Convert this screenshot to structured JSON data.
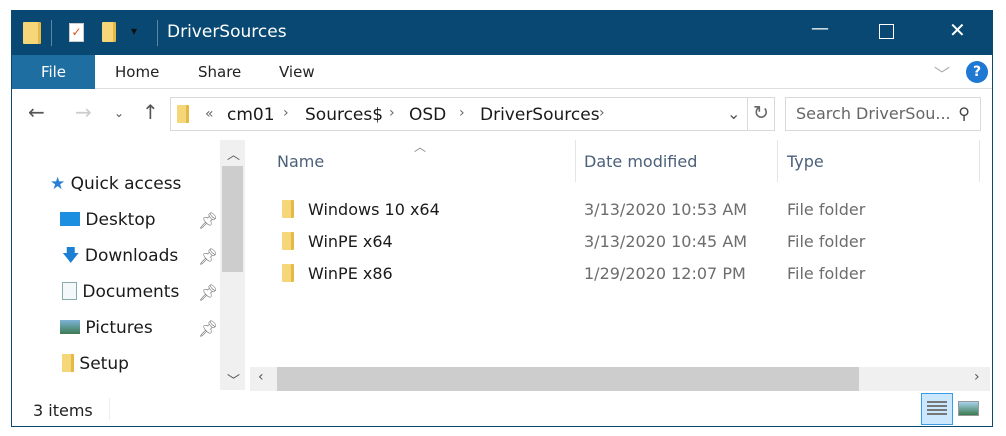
{
  "window": {
    "title": "DriverSources",
    "accent": "#084872",
    "file_tab_color": "#1f6ea1"
  },
  "quick_access_toolbar": {
    "icons": [
      "folder-icon",
      "properties-icon",
      "new-folder-icon",
      "customize-dropdown-icon"
    ]
  },
  "window_controls": {
    "minimize": "—",
    "maximize": "☐",
    "close": "✕"
  },
  "ribbon": {
    "tabs": [
      "File",
      "Home",
      "Share",
      "View"
    ],
    "help": "?"
  },
  "address_bar": {
    "overflow": "«",
    "crumbs": [
      "cm01",
      "Sources$",
      "OSD",
      "DriverSources"
    ]
  },
  "search": {
    "placeholder": "Search DriverSou..."
  },
  "navigation": {
    "items": [
      {
        "label": "Quick access",
        "icon": "star-icon",
        "pinned": false
      },
      {
        "label": "Desktop",
        "icon": "desktop-icon",
        "pinned": true
      },
      {
        "label": "Downloads",
        "icon": "download-icon",
        "pinned": true
      },
      {
        "label": "Documents",
        "icon": "documents-icon",
        "pinned": true
      },
      {
        "label": "Pictures",
        "icon": "pictures-icon",
        "pinned": true
      },
      {
        "label": "Setup",
        "icon": "folder-icon",
        "pinned": false
      }
    ]
  },
  "columns": [
    "Name",
    "Date modified",
    "Type"
  ],
  "files": [
    {
      "name": "Windows 10 x64",
      "date": "3/13/2020 10:53 AM",
      "type": "File folder"
    },
    {
      "name": "WinPE x64",
      "date": "3/13/2020 10:45 AM",
      "type": "File folder"
    },
    {
      "name": "WinPE x86",
      "date": "1/29/2020 12:07 PM",
      "type": "File folder"
    }
  ],
  "status": {
    "count": "3 items",
    "view": "details"
  }
}
